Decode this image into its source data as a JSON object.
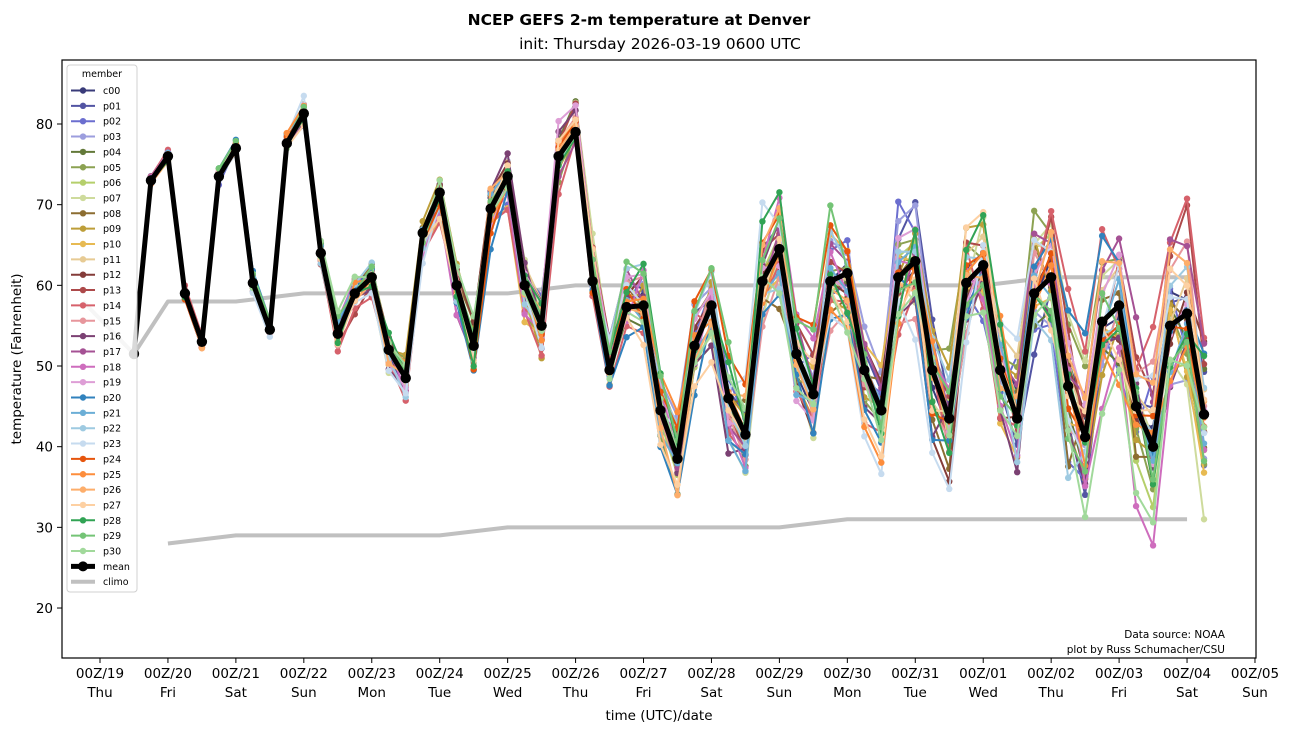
{
  "chart_data": {
    "type": "line",
    "title": "NCEP GEFS 2-m temperature at Denver",
    "subtitle": "init: Thursday 2026-03-19 0600 UTC",
    "xlabel": "time (UTC)/date",
    "ylabel": "temperature (Fahrenheit)",
    "ylim": [
      14,
      88
    ],
    "yticks": [
      20,
      30,
      40,
      50,
      60,
      70,
      80
    ],
    "xlim_days": [
      -0.55,
      17.05
    ],
    "xticks": [
      {
        "day": 0,
        "label": "00Z/19",
        "weekday": "Thu"
      },
      {
        "day": 1,
        "label": "00Z/20",
        "weekday": "Fri"
      },
      {
        "day": 2,
        "label": "00Z/21",
        "weekday": "Sat"
      },
      {
        "day": 3,
        "label": "00Z/22",
        "weekday": "Sun"
      },
      {
        "day": 4,
        "label": "00Z/23",
        "weekday": "Mon"
      },
      {
        "day": 5,
        "label": "00Z/24",
        "weekday": "Tue"
      },
      {
        "day": 6,
        "label": "00Z/25",
        "weekday": "Wed"
      },
      {
        "day": 7,
        "label": "00Z/26",
        "weekday": "Thu"
      },
      {
        "day": 8,
        "label": "00Z/27",
        "weekday": "Fri"
      },
      {
        "day": 9,
        "label": "00Z/28",
        "weekday": "Sat"
      },
      {
        "day": 10,
        "label": "00Z/29",
        "weekday": "Sun"
      },
      {
        "day": 11,
        "label": "00Z/30",
        "weekday": "Mon"
      },
      {
        "day": 12,
        "label": "00Z/31",
        "weekday": "Tue"
      },
      {
        "day": 13,
        "label": "00Z/01",
        "weekday": "Wed"
      },
      {
        "day": 14,
        "label": "00Z/02",
        "weekday": "Thu"
      },
      {
        "day": 15,
        "label": "00Z/03",
        "weekday": "Fri"
      },
      {
        "day": 16,
        "label": "00Z/04",
        "weekday": "Sat"
      },
      {
        "day": 17,
        "label": "00Z/05",
        "weekday": "Sun"
      }
    ],
    "time_start_day": 0.5,
    "time_step_hours": 6,
    "legend": {
      "title": "member",
      "position": "upper-left"
    },
    "grid": false,
    "mean": {
      "name": "mean",
      "color": "#000000",
      "values": [
        51.5,
        73,
        76,
        59,
        53,
        73.5,
        77,
        60.3,
        54.5,
        77.6,
        81.3,
        64,
        54,
        59,
        61,
        52,
        48.5,
        66.5,
        71.5,
        60,
        52.5,
        69.5,
        73.5,
        60,
        55,
        76,
        79,
        60.5,
        49.5,
        57.3,
        57.5,
        44.5,
        38.5,
        52.5,
        57.5,
        46,
        41.5,
        60.5,
        64.5,
        51.5,
        46.5,
        60.5,
        61.5,
        49.5,
        44.5,
        61,
        63,
        49.5,
        43.5,
        60.3,
        62.5,
        49.5,
        43.5,
        59,
        61,
        47.5,
        41.2,
        55.5,
        57.5,
        45,
        40,
        55,
        56.5,
        44
      ]
    },
    "climo": {
      "name": "climo",
      "color": "#c0c0c0",
      "high": {
        "days": [
          -0.25,
          0.5,
          1,
          2,
          3,
          4,
          5,
          6,
          7,
          8,
          9,
          10,
          11,
          12,
          13,
          14,
          15,
          16
        ],
        "values": [
          58,
          51.5,
          58,
          58,
          59,
          59,
          59,
          59,
          60,
          60,
          60,
          60,
          60,
          60,
          60,
          61,
          61,
          61
        ]
      },
      "low": {
        "days": [
          1,
          2,
          3,
          4,
          5,
          6,
          7,
          8,
          9,
          10,
          11,
          12,
          13,
          14,
          15,
          16
        ],
        "values": [
          28,
          29,
          29,
          29,
          29,
          30,
          30,
          30,
          30,
          30,
          31,
          31,
          31,
          31,
          31,
          31
        ]
      }
    },
    "members": [
      {
        "name": "c00",
        "color": "#393b79",
        "spread": 0.55,
        "seed": 1
      },
      {
        "name": "p01",
        "color": "#5254a3",
        "spread": 0.8,
        "seed": 2
      },
      {
        "name": "p02",
        "color": "#6b6ecf",
        "spread": 1.35,
        "seed": 3
      },
      {
        "name": "p03",
        "color": "#9c9ede",
        "spread": 0.85,
        "seed": 4
      },
      {
        "name": "p04",
        "color": "#637939",
        "spread": 1.0,
        "seed": 5
      },
      {
        "name": "p05",
        "color": "#8ca252",
        "spread": 1.05,
        "seed": 6
      },
      {
        "name": "p06",
        "color": "#b5cf6b",
        "spread": 0.7,
        "seed": 7
      },
      {
        "name": "p07",
        "color": "#cedb9c",
        "spread": 1.25,
        "seed": 8
      },
      {
        "name": "p08",
        "color": "#8c6d31",
        "spread": 1.2,
        "seed": 9
      },
      {
        "name": "p09",
        "color": "#bd9e39",
        "spread": 1.15,
        "seed": 10
      },
      {
        "name": "p10",
        "color": "#e7ba52",
        "spread": 0.9,
        "seed": 11
      },
      {
        "name": "p11",
        "color": "#e7cb94",
        "spread": 0.75,
        "seed": 12
      },
      {
        "name": "p12",
        "color": "#843c39",
        "spread": 0.95,
        "seed": 13
      },
      {
        "name": "p13",
        "color": "#ad494a",
        "spread": 1.1,
        "seed": 14
      },
      {
        "name": "p14",
        "color": "#d6616b",
        "spread": 1.25,
        "seed": 15
      },
      {
        "name": "p15",
        "color": "#e7969c",
        "spread": 0.9,
        "seed": 16
      },
      {
        "name": "p16",
        "color": "#7b4173",
        "spread": 1.0,
        "seed": 17
      },
      {
        "name": "p17",
        "color": "#a55194",
        "spread": 1.1,
        "seed": 18
      },
      {
        "name": "p18",
        "color": "#ce6dbd",
        "spread": 1.3,
        "seed": 19
      },
      {
        "name": "p19",
        "color": "#de9ed6",
        "spread": 0.95,
        "seed": 20
      },
      {
        "name": "p20",
        "color": "#3182bd",
        "spread": 1.0,
        "seed": 21
      },
      {
        "name": "p21",
        "color": "#6baed6",
        "spread": 0.85,
        "seed": 22
      },
      {
        "name": "p22",
        "color": "#9ecae1",
        "spread": 1.1,
        "seed": 23
      },
      {
        "name": "p23",
        "color": "#c6dbef",
        "spread": 1.35,
        "seed": 24
      },
      {
        "name": "p24",
        "color": "#e6550d",
        "spread": 1.15,
        "seed": 25
      },
      {
        "name": "p25",
        "color": "#fd8d3c",
        "spread": 1.05,
        "seed": 26
      },
      {
        "name": "p26",
        "color": "#fdae6b",
        "spread": 0.9,
        "seed": 27
      },
      {
        "name": "p27",
        "color": "#fdd0a2",
        "spread": 1.0,
        "seed": 28
      },
      {
        "name": "p28",
        "color": "#31a354",
        "spread": 1.3,
        "seed": 29
      },
      {
        "name": "p29",
        "color": "#74c476",
        "spread": 0.95,
        "seed": 30
      },
      {
        "name": "p30",
        "color": "#a1d99b",
        "spread": 1.2,
        "seed": 31
      }
    ],
    "annotation": [
      "Data source: NOAA",
      "plot by Russ Schumacher/CSU"
    ]
  },
  "legend_items_extra": [
    {
      "name": "mean"
    },
    {
      "name": "climo"
    }
  ]
}
